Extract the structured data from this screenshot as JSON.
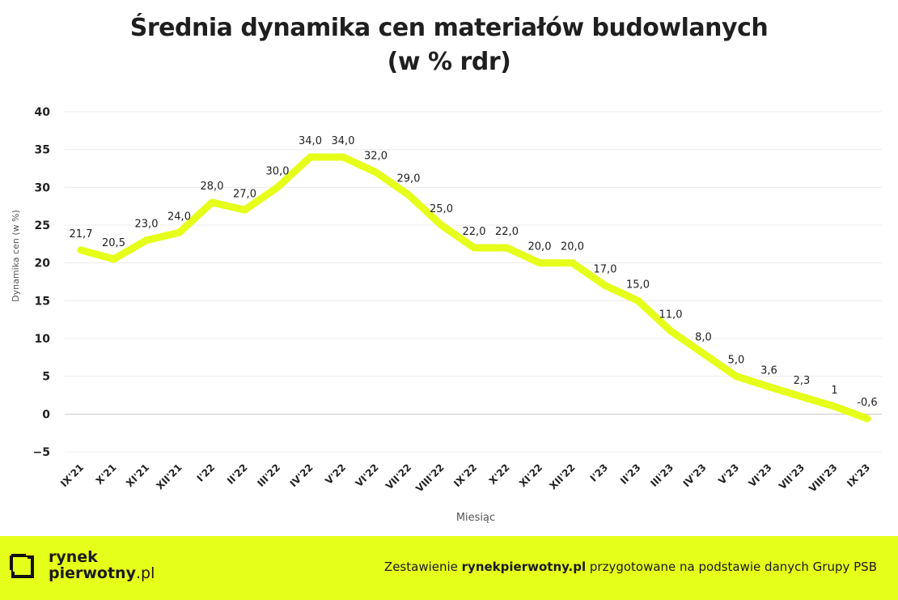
{
  "chart_data": {
    "type": "line",
    "title": "Średnia dynamika cen materiałów budowlanych",
    "subtitle": "(w % rdr)",
    "xlabel": "Miesiąc",
    "ylabel": "Dynamika cen (w %)",
    "ylim": [
      -5,
      40
    ],
    "yticks": [
      "−5",
      "0",
      "5",
      "10",
      "15",
      "20",
      "25",
      "30",
      "35",
      "40"
    ],
    "ytick_values": [
      -5,
      0,
      5,
      10,
      15,
      20,
      25,
      30,
      35,
      40
    ],
    "grid": true,
    "line_color": "#e6ff1a",
    "categories": [
      "IX'21",
      "X'21",
      "XI'21",
      "XII'21",
      "I'22",
      "II'22",
      "III'22",
      "IV'22",
      "V'22",
      "VI'22",
      "VII'22",
      "VIII'22",
      "IX'22",
      "X'22",
      "XI'22",
      "XII'22",
      "I'23",
      "II'23",
      "III'23",
      "IV'23",
      "V'23",
      "VI'23",
      "VII'23",
      "VIII'23",
      "IX'23"
    ],
    "values": [
      21.7,
      20.5,
      23.0,
      24.0,
      28.0,
      27.0,
      30.0,
      34.0,
      34.0,
      32.0,
      29.0,
      25.0,
      22.0,
      22.0,
      20.0,
      20.0,
      17.0,
      15.0,
      11.0,
      8.0,
      5.0,
      3.6,
      2.3,
      1,
      -0.6
    ],
    "labels": [
      "21,7",
      "20,5",
      "23,0",
      "24,0",
      "28,0",
      "27,0",
      "30,0",
      "34,0",
      "34,0",
      "32,0",
      "29,0",
      "25,0",
      "22,0",
      "22,0",
      "20,0",
      "20,0",
      "17,0",
      "15,0",
      "11,0",
      "8,0",
      "5,0",
      "3,6",
      "2,3",
      "1",
      "-0,6"
    ]
  },
  "footer": {
    "logo_line1": "rynek",
    "logo_line2": "pierwotny",
    "logo_line2_suffix": ".pl",
    "credit_prefix": "Zestawienie ",
    "credit_brand": "rynekpierwotny.pl",
    "credit_suffix": " przygotowane na podstawie danych Grupy PSB",
    "accent_color": "#e6ff1a"
  }
}
